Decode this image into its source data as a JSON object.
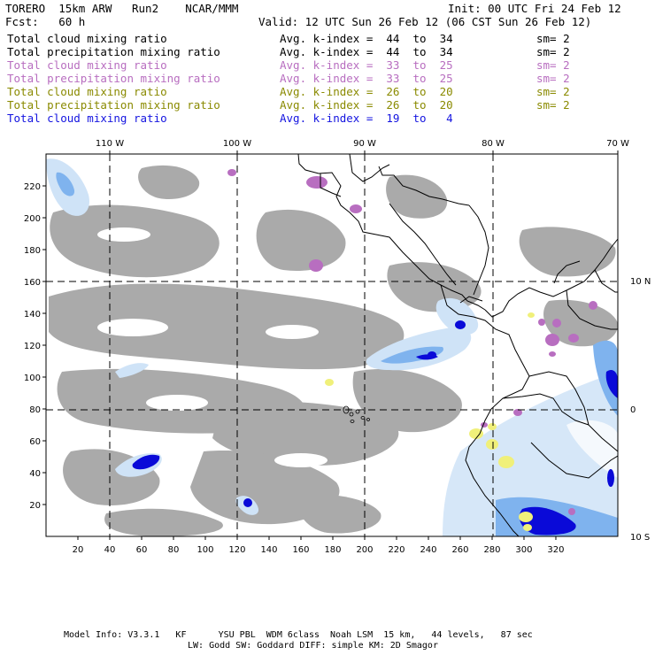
{
  "header": {
    "model": "TORERO  15km ARW   Run2    NCAR/MMM",
    "init": "Init: 00 UTC Fri 24 Feb 12",
    "fcst": "Fcst:   60 h",
    "valid": "Valid: 12 UTC Sun 26 Feb 12 (06 CST Sun 26 Feb 12)"
  },
  "legend": [
    {
      "field": "Total cloud mixing ratio",
      "kindex": "Avg. k-index =  44  to  34",
      "sm": "sm= 2",
      "color": "#000000"
    },
    {
      "field": "Total precipitation mixing ratio",
      "kindex": "Avg. k-index =  44  to  34",
      "sm": "sm= 2",
      "color": "#000000"
    },
    {
      "field": "Total cloud mixing ratio",
      "kindex": "Avg. k-index =  33  to  25",
      "sm": "sm= 2",
      "color": "#b86ec0"
    },
    {
      "field": "Total precipitation mixing ratio",
      "kindex": "Avg. k-index =  33  to  25",
      "sm": "sm= 2",
      "color": "#b86ec0"
    },
    {
      "field": "Total cloud mixing ratio",
      "kindex": "Avg. k-index =  26  to  20",
      "sm": "sm= 2",
      "color": "#8a8a00"
    },
    {
      "field": "Total precipitation mixing ratio",
      "kindex": "Avg. k-index =  26  to  20",
      "sm": "sm= 2",
      "color": "#8a8a00"
    },
    {
      "field": "Total cloud mixing ratio",
      "kindex": "Avg. k-index =  19  to   4",
      "sm": "",
      "color": "#1414e0"
    }
  ],
  "map": {
    "lon_labels": [
      "110 W",
      "100 W",
      "90 W",
      "80 W",
      "70 W"
    ],
    "lat_labels": [
      "10 N",
      "0",
      "10 S"
    ],
    "y_ticks": [
      "220",
      "200",
      "180",
      "160",
      "140",
      "120",
      "100",
      "80",
      "60",
      "40",
      "20"
    ],
    "x_ticks": [
      "20",
      "40",
      "60",
      "80",
      "100",
      "120",
      "140",
      "160",
      "180",
      "200",
      "220",
      "240",
      "260",
      "280",
      "300",
      "320"
    ],
    "colors": {
      "gray_cloud": "#aaaaaa",
      "light_blue": "#cfe3f7",
      "mid_blue": "#7fb3ee",
      "deep_blue": "#0a0ad8",
      "purple": "#b86ec0",
      "yellow": "#f0f07a",
      "coast": "#000000"
    }
  },
  "footer": {
    "line1": "Model Info: V3.3.1   KF      YSU PBL  WDM 6class  Noah LSM  15 km,   44 levels,   87 sec",
    "line2": "LW: Godd SW: Goddard DIFF: simple KM: 2D Smagor"
  }
}
